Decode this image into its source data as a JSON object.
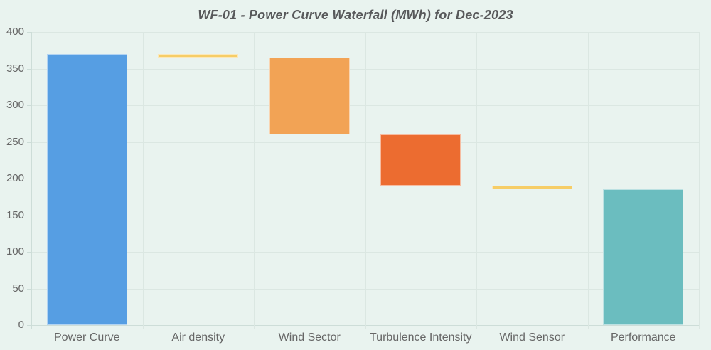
{
  "page": {
    "background": "#e9f3ef"
  },
  "chart": {
    "title_color": "#58595b",
    "text_color": "#666666",
    "grid_color": "#dbe7e2",
    "axis_color": "#cdddd8"
  },
  "chart_data": {
    "type": "bar",
    "subtype": "waterfall",
    "title": "WF-01 - Power Curve Waterfall (MWh) for Dec-2023",
    "xlabel": "",
    "ylabel": "",
    "ylim": [
      0,
      400
    ],
    "yticks": [
      0,
      50,
      100,
      150,
      200,
      250,
      300,
      350,
      400
    ],
    "grid": true,
    "legend": "none",
    "categories": [
      "Power Curve",
      "Air density",
      "Wind Sector",
      "Turbulence Intensity",
      "Wind Sensor",
      "Performance"
    ],
    "bars": [
      {
        "label": "Power Curve",
        "from": 0,
        "to": 370,
        "color": "#569ee3",
        "role": "start-total"
      },
      {
        "label": "Air density",
        "from": 365,
        "to": 370,
        "color": "#f6cd66",
        "role": "decrease"
      },
      {
        "label": "Wind Sector",
        "from": 260,
        "to": 365,
        "color": "#f2a355",
        "role": "decrease"
      },
      {
        "label": "Turbulence Intensity",
        "from": 190,
        "to": 260,
        "color": "#ec6c30",
        "role": "decrease"
      },
      {
        "label": "Wind Sensor",
        "from": 185,
        "to": 190,
        "color": "#f6cd66",
        "role": "decrease"
      },
      {
        "label": "Performance",
        "from": 0,
        "to": 185,
        "color": "#6bbdbf",
        "role": "end-total"
      }
    ]
  }
}
